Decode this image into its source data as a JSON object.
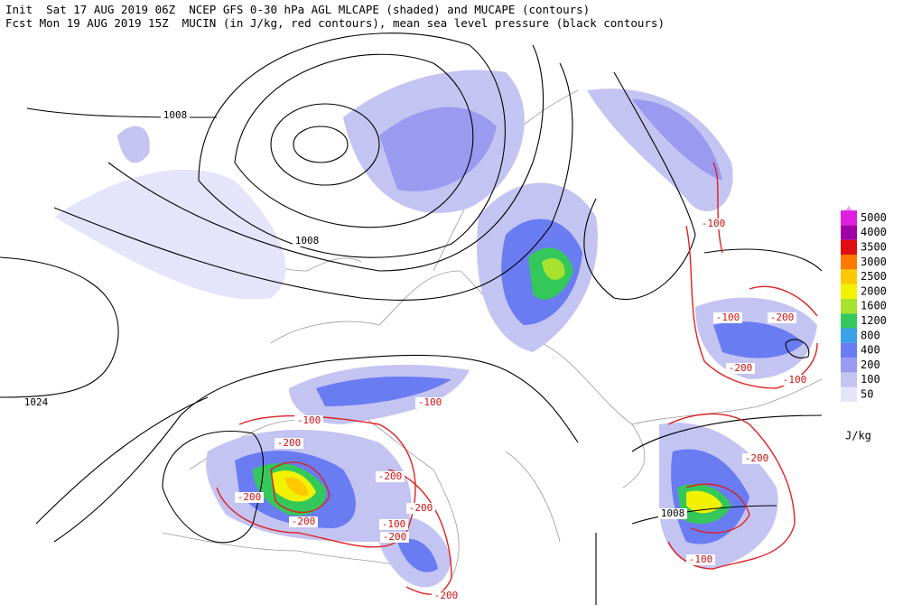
{
  "header": {
    "line1": "Init  Sat 17 AUG 2019 06Z  NCEP GFS 0-30 hPa AGL MLCAPE (shaded) and MUCAPE (contours)",
    "line2": "Fcst Mon 19 AUG 2019 15Z  MUCIN (in J/kg, red contours), mean sea level pressure (black contours)"
  },
  "legend": {
    "unit": "J/kg",
    "levels": [
      {
        "value": 50,
        "color": "#e4e4fa"
      },
      {
        "value": 100,
        "color": "#c4c4f2"
      },
      {
        "value": 200,
        "color": "#9a9af0"
      },
      {
        "value": 400,
        "color": "#6a7cf2"
      },
      {
        "value": 800,
        "color": "#3aa0e8"
      },
      {
        "value": 1200,
        "color": "#34c85a"
      },
      {
        "value": 1600,
        "color": "#a6e22e"
      },
      {
        "value": 2000,
        "color": "#f2f200"
      },
      {
        "value": 2500,
        "color": "#ffc800"
      },
      {
        "value": 3000,
        "color": "#ff7a00"
      },
      {
        "value": 3500,
        "color": "#e01010"
      },
      {
        "value": 4000,
        "color": "#a000a8"
      },
      {
        "value": 5000,
        "color": "#e020e0"
      }
    ]
  },
  "pressure_labels": [
    1008,
    1008,
    1024,
    1008
  ],
  "cin_labels": [
    -100,
    -100,
    -200,
    -200,
    -100,
    -100,
    -100,
    -200,
    -200,
    -200,
    -200,
    -200,
    -100,
    -200,
    -200,
    -100,
    -200
  ]
}
